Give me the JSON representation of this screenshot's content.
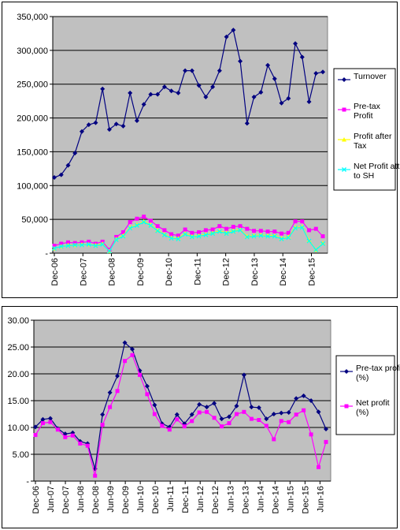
{
  "chart_data": [
    {
      "type": "line",
      "title": "",
      "xlabel": "",
      "ylabel": "",
      "ylim": [
        0,
        350000
      ],
      "y_tick_labels": [
        "-",
        "50,000",
        "100,000",
        "150,000",
        "200,000",
        "250,000",
        "300,000",
        "350,000"
      ],
      "x_tick_labels": [
        "Dec-06",
        "Dec-07",
        "Dec-08",
        "Dec-09",
        "Dec-10",
        "Dec-11",
        "Dec-12",
        "Dec-13",
        "Dec-14",
        "Dec-15"
      ],
      "grid": "horizontal",
      "plot_background": "#c0c0c0",
      "legend_position": "right",
      "series": [
        {
          "name": "Turnover",
          "color": "#000080",
          "marker": "diamond",
          "values": [
            112000,
            116000,
            130000,
            148000,
            180000,
            190000,
            193000,
            243000,
            183000,
            191000,
            188000,
            237000,
            196000,
            220000,
            235000,
            235000,
            246000,
            240000,
            237000,
            270000,
            270000,
            248000,
            231000,
            246000,
            270000,
            320000,
            330000,
            284000,
            192000,
            231000,
            238000,
            278000,
            258000,
            222000,
            229000,
            310000,
            290000,
            224000,
            266000,
            268000
          ]
        },
        {
          "name": "Pre-tax Profit",
          "color": "#ff00ff",
          "marker": "square",
          "values": [
            11000,
            14000,
            16000,
            15000,
            16000,
            17000,
            14000,
            17000,
            5000,
            24000,
            31000,
            46000,
            51000,
            54000,
            48000,
            40000,
            34000,
            28000,
            26000,
            35000,
            30000,
            31000,
            34000,
            35000,
            40000,
            36000,
            39000,
            40000,
            36000,
            33000,
            33000,
            32000,
            32000,
            29000,
            30000,
            47000,
            47000,
            34000,
            36000,
            25000
          ]
        },
        {
          "name": "Profit after Tax",
          "color": "#ffff00",
          "marker": "triangle",
          "values": [
            7000,
            10000,
            12000,
            12000,
            13000,
            13000,
            12000,
            14000,
            3000,
            21000,
            26000,
            38000,
            42000,
            47000,
            42000,
            34000,
            28000,
            23000,
            22000,
            29000,
            25000,
            26000,
            28000,
            30000,
            33000,
            30000,
            33000,
            35000,
            25000,
            26000,
            27000,
            26000,
            26000,
            22000,
            24000,
            38000,
            39000,
            19000,
            5000,
            15000
          ]
        },
        {
          "name": "Net Profit attr to SH",
          "color": "#00ffff",
          "marker": "x",
          "values": [
            7000,
            10000,
            11000,
            12000,
            12000,
            13000,
            11000,
            13000,
            3000,
            20000,
            25000,
            37000,
            41000,
            46000,
            41000,
            33000,
            27000,
            22000,
            21000,
            28000,
            24000,
            25000,
            27000,
            29000,
            32000,
            29000,
            32000,
            34000,
            24000,
            25000,
            26000,
            25000,
            25000,
            21000,
            23000,
            37000,
            38000,
            18000,
            5000,
            14000
          ]
        }
      ]
    },
    {
      "type": "line",
      "title": "",
      "xlabel": "",
      "ylabel": "",
      "ylim": [
        0,
        30
      ],
      "y_tick_labels": [
        "-",
        "5.00",
        "10.00",
        "15.00",
        "20.00",
        "25.00",
        "30.00"
      ],
      "x_tick_labels": [
        "Dec-06",
        "Jun-07",
        "Dec-07",
        "Jun-08",
        "Dec-08",
        "Jun-09",
        "Dec-09",
        "Jun-10",
        "Dec-10",
        "Jun-11",
        "Dec-11",
        "Jun-12",
        "Dec-12",
        "Jun-13",
        "Dec-13",
        "Jun-14",
        "Dec-14",
        "Jun-15",
        "Dec-15",
        "Jun-16"
      ],
      "grid": "horizontal",
      "plot_background": "#c0c0c0",
      "legend_position": "right",
      "series": [
        {
          "name": "Pre-tax profit (%)",
          "color": "#000080",
          "marker": "diamond",
          "values": [
            10.1,
            11.5,
            11.7,
            9.8,
            8.8,
            9.0,
            7.4,
            7.0,
            2.3,
            12.4,
            16.5,
            19.6,
            25.8,
            24.6,
            20.6,
            17.7,
            14.2,
            10.7,
            10.1,
            12.4,
            10.7,
            12.4,
            14.3,
            13.8,
            14.5,
            11.6,
            12.0,
            14.0,
            19.8,
            13.8,
            13.7,
            11.6,
            12.5,
            12.7,
            12.8,
            15.4,
            15.9,
            15.0,
            12.9,
            9.7
          ]
        },
        {
          "name": "Net profit (%)",
          "color": "#ff00ff",
          "marker": "square",
          "values": [
            8.6,
            10.8,
            11.0,
            9.6,
            8.2,
            8.5,
            7.0,
            6.6,
            1.0,
            10.5,
            13.8,
            16.8,
            22.4,
            23.5,
            19.8,
            16.2,
            12.5,
            10.3,
            9.6,
            11.5,
            10.2,
            11.2,
            12.8,
            12.9,
            11.8,
            10.2,
            10.8,
            12.5,
            12.9,
            11.6,
            11.4,
            10.3,
            7.8,
            11.2,
            11.0,
            12.4,
            13.2,
            8.7,
            2.6,
            7.3
          ]
        }
      ]
    }
  ]
}
